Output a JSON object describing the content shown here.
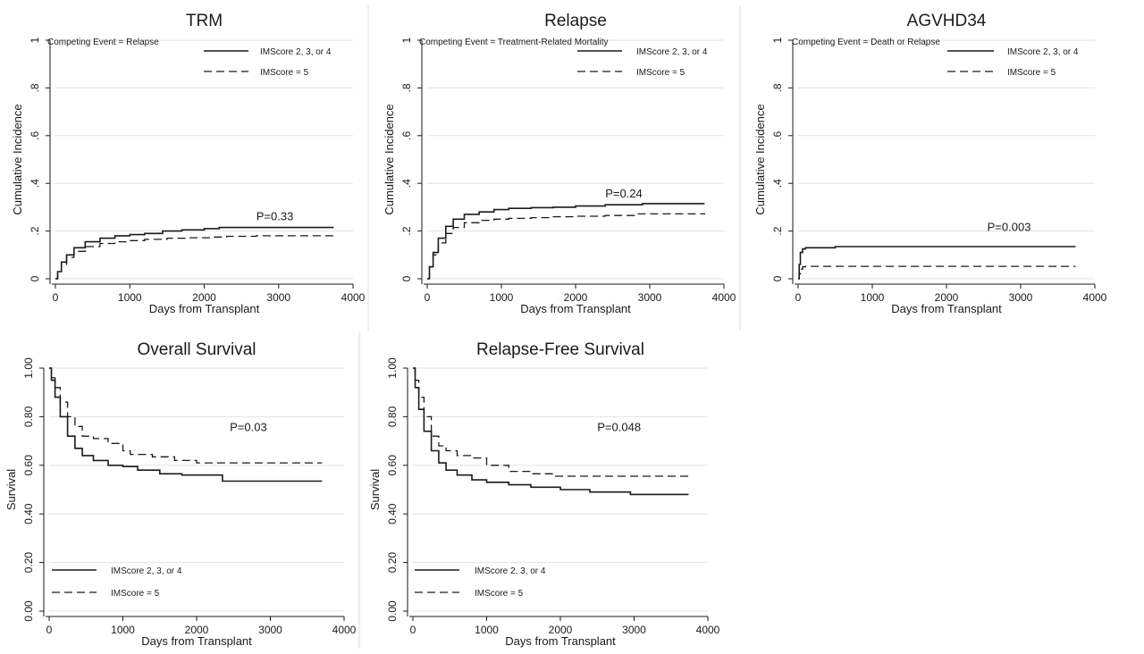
{
  "chart_data": [
    {
      "type": "line",
      "title": "TRM",
      "xlabel": "Days from Transplant",
      "ylabel": "Cumulative Incidence",
      "xlim": [
        0,
        4000
      ],
      "ylim": [
        0,
        1
      ],
      "xticks": [
        0,
        1000,
        2000,
        3000,
        4000
      ],
      "yticks": [
        0,
        0.2,
        0.4,
        0.6,
        0.8,
        1
      ],
      "ytick_labels": [
        "0",
        ".2",
        ".4",
        ".6",
        ".8",
        "1"
      ],
      "grid": true,
      "legend_position": "top-right",
      "annotation": "Competing Event = Relapse",
      "p_value_label": "P=0.33",
      "p_value_at": [
        2700,
        0.245
      ],
      "series": [
        {
          "name": "IMScore 2, 3, or 4",
          "style": "solid",
          "x": [
            0,
            30,
            80,
            150,
            250,
            400,
            600,
            800,
            1000,
            1200,
            1440,
            1700,
            2000,
            2200,
            2500,
            3000,
            3740
          ],
          "y": [
            0,
            0.03,
            0.07,
            0.1,
            0.13,
            0.155,
            0.17,
            0.18,
            0.185,
            0.19,
            0.2,
            0.205,
            0.21,
            0.215,
            0.215,
            0.215,
            0.215
          ]
        },
        {
          "name": "IMScore = 5",
          "style": "dashed",
          "x": [
            0,
            30,
            80,
            150,
            250,
            400,
            600,
            800,
            1000,
            1200,
            1500,
            1800,
            2100,
            2300,
            2700,
            3000,
            3740
          ],
          "y": [
            0,
            0.03,
            0.06,
            0.09,
            0.115,
            0.135,
            0.148,
            0.155,
            0.16,
            0.165,
            0.17,
            0.172,
            0.175,
            0.178,
            0.18,
            0.18,
            0.18
          ]
        }
      ]
    },
    {
      "type": "line",
      "title": "Relapse",
      "xlabel": "Days from Transplant",
      "ylabel": "Cumulative Incidence",
      "xlim": [
        0,
        4000
      ],
      "ylim": [
        0,
        1
      ],
      "xticks": [
        0,
        1000,
        2000,
        3000,
        4000
      ],
      "yticks": [
        0,
        0.2,
        0.4,
        0.6,
        0.8,
        1
      ],
      "ytick_labels": [
        "0",
        ".2",
        ".4",
        ".6",
        ".8",
        "1"
      ],
      "grid": true,
      "legend_position": "top-right",
      "annotation": "Competing Event = Treatment-Related Mortality",
      "p_value_label": "P=0.24",
      "p_value_at": [
        2400,
        0.34
      ],
      "series": [
        {
          "name": "IMScore 2, 3, or 4",
          "style": "solid",
          "x": [
            0,
            30,
            80,
            150,
            250,
            350,
            500,
            700,
            900,
            1100,
            1400,
            1700,
            2000,
            2400,
            2900,
            3740
          ],
          "y": [
            0,
            0.05,
            0.11,
            0.17,
            0.22,
            0.25,
            0.27,
            0.28,
            0.29,
            0.295,
            0.298,
            0.3,
            0.305,
            0.31,
            0.315,
            0.315
          ]
        },
        {
          "name": "IMScore = 5",
          "style": "dashed",
          "x": [
            0,
            30,
            80,
            150,
            250,
            350,
            500,
            700,
            900,
            1100,
            1400,
            1700,
            2000,
            2400,
            2800,
            3740
          ],
          "y": [
            0,
            0.05,
            0.1,
            0.15,
            0.19,
            0.215,
            0.235,
            0.245,
            0.25,
            0.253,
            0.256,
            0.26,
            0.262,
            0.265,
            0.272,
            0.275
          ]
        }
      ]
    },
    {
      "type": "line",
      "title": "AGVHD34",
      "xlabel": "Days from Transplant",
      "ylabel": "Cumulative Incidence",
      "xlim": [
        0,
        4000
      ],
      "ylim": [
        0,
        1
      ],
      "xticks": [
        0,
        1000,
        2000,
        3000,
        4000
      ],
      "yticks": [
        0,
        0.2,
        0.4,
        0.6,
        0.8,
        1
      ],
      "ytick_labels": [
        "0",
        ".2",
        ".4",
        ".6",
        ".8",
        "1"
      ],
      "grid": true,
      "legend_position": "top-right",
      "annotation": "Competing Event = Death or Relapse",
      "p_value_label": "P=0.003",
      "p_value_at": [
        2550,
        0.2
      ],
      "series": [
        {
          "name": "IMScore 2, 3, or 4",
          "style": "solid",
          "x": [
            0,
            15,
            30,
            60,
            100,
            200,
            500,
            1000,
            2000,
            3000,
            3740
          ],
          "y": [
            0,
            0.06,
            0.11,
            0.125,
            0.13,
            0.13,
            0.135,
            0.135,
            0.135,
            0.135,
            0.135
          ]
        },
        {
          "name": "IMScore = 5",
          "style": "dashed",
          "x": [
            0,
            15,
            30,
            60,
            100,
            500,
            1000,
            2000,
            3000,
            3740
          ],
          "y": [
            0,
            0.02,
            0.04,
            0.05,
            0.052,
            0.052,
            0.052,
            0.052,
            0.052,
            0.052
          ]
        }
      ]
    },
    {
      "type": "line",
      "title": "Overall Survival",
      "xlabel": "Days from Transplant",
      "ylabel": "Survival",
      "xlim": [
        0,
        4000
      ],
      "ylim": [
        0,
        1
      ],
      "xticks": [
        0,
        1000,
        2000,
        3000,
        4000
      ],
      "yticks": [
        0,
        0.2,
        0.4,
        0.6,
        0.8,
        1
      ],
      "ytick_labels": [
        "0.00",
        "0.20",
        "0.40",
        "0.60",
        "0.80",
        "1.00"
      ],
      "grid": true,
      "legend_position": "bottom-left",
      "annotation": "",
      "p_value_label": "P=0.03",
      "p_value_at": [
        2450,
        0.74
      ],
      "series": [
        {
          "name": "IMScore 2, 3, or 4",
          "style": "solid",
          "x": [
            0,
            30,
            80,
            150,
            250,
            350,
            450,
            600,
            800,
            1000,
            1200,
            1500,
            1800,
            2100,
            2300,
            2350,
            3000,
            3700
          ],
          "y": [
            1,
            0.95,
            0.88,
            0.8,
            0.72,
            0.67,
            0.64,
            0.62,
            0.6,
            0.595,
            0.58,
            0.565,
            0.56,
            0.56,
            0.56,
            0.535,
            0.535,
            0.535
          ]
        },
        {
          "name": "IMScore = 5",
          "style": "dashed",
          "x": [
            0,
            30,
            80,
            150,
            250,
            350,
            450,
            600,
            800,
            1000,
            1100,
            1400,
            1700,
            2000,
            2300,
            3000,
            3700
          ],
          "y": [
            1,
            0.96,
            0.92,
            0.86,
            0.8,
            0.76,
            0.72,
            0.71,
            0.69,
            0.66,
            0.645,
            0.635,
            0.62,
            0.61,
            0.61,
            0.61,
            0.61
          ]
        }
      ]
    },
    {
      "type": "line",
      "title": "Relapse-Free Survival",
      "xlabel": "Days from Transplant",
      "ylabel": "Survival",
      "xlim": [
        0,
        4000
      ],
      "ylim": [
        0,
        1
      ],
      "xticks": [
        0,
        1000,
        2000,
        3000,
        4000
      ],
      "yticks": [
        0,
        0.2,
        0.4,
        0.6,
        0.8,
        1
      ],
      "ytick_labels": [
        "0.00",
        "0.20",
        "0.40",
        "0.60",
        "0.80",
        "1.00"
      ],
      "grid": true,
      "legend_position": "bottom-left",
      "annotation": "",
      "p_value_label": "P=0.048",
      "p_value_at": [
        2500,
        0.74
      ],
      "series": [
        {
          "name": "IMScore 2, 3, or 4",
          "style": "solid",
          "x": [
            0,
            30,
            80,
            150,
            250,
            350,
            450,
            600,
            800,
            1000,
            1300,
            1600,
            2000,
            2400,
            2900,
            2950,
            3740
          ],
          "y": [
            1,
            0.92,
            0.83,
            0.74,
            0.66,
            0.61,
            0.58,
            0.56,
            0.54,
            0.53,
            0.52,
            0.51,
            0.5,
            0.49,
            0.49,
            0.48,
            0.48
          ]
        },
        {
          "name": "IMScore = 5",
          "style": "dashed",
          "x": [
            0,
            30,
            80,
            150,
            250,
            350,
            450,
            600,
            800,
            1000,
            1300,
            1600,
            1900,
            2200,
            2600,
            3740
          ],
          "y": [
            1,
            0.95,
            0.88,
            0.8,
            0.72,
            0.68,
            0.66,
            0.64,
            0.63,
            0.6,
            0.575,
            0.565,
            0.555,
            0.555,
            0.555,
            0.555
          ]
        }
      ]
    }
  ]
}
